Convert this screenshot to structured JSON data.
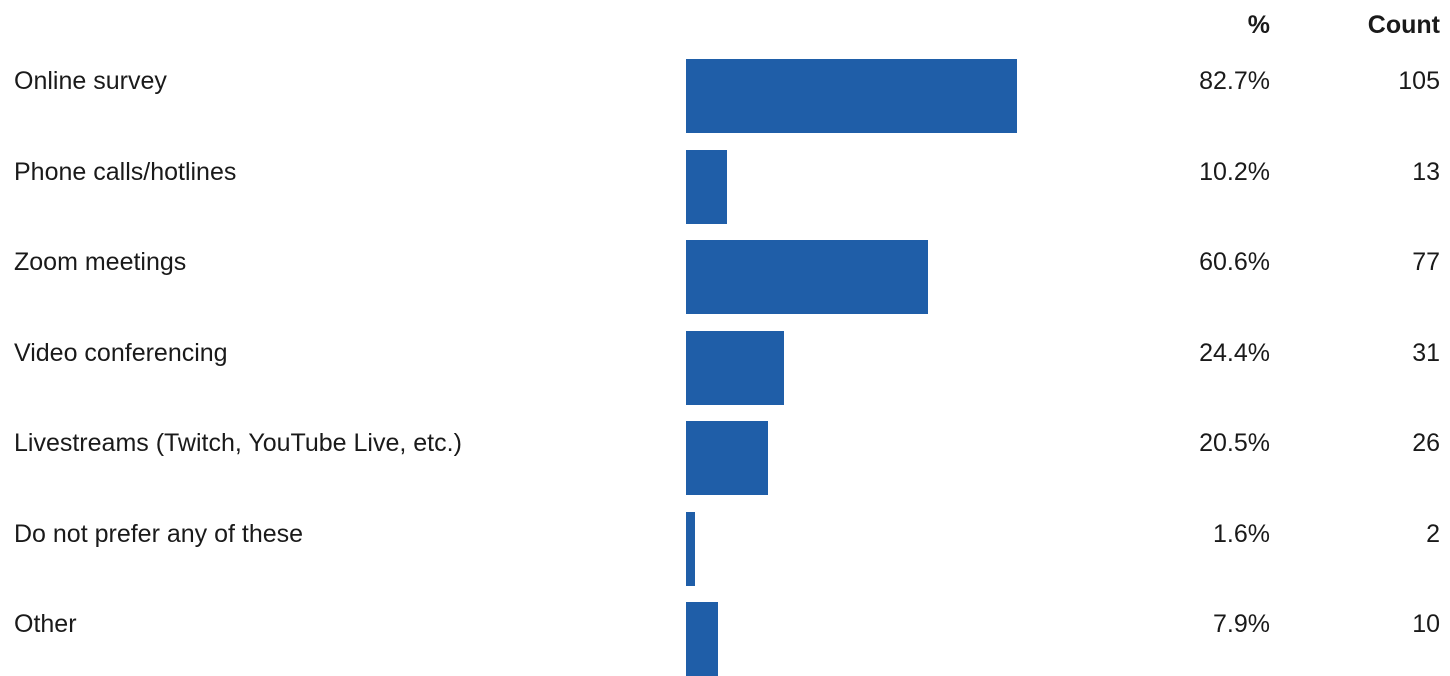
{
  "chart_data": {
    "type": "bar",
    "orientation": "horizontal",
    "columns": {
      "percent_header": "%",
      "count_header": "Count"
    },
    "categories": [
      "Online survey",
      "Phone calls/hotlines",
      "Zoom meetings",
      "Video conferencing",
      "Livestreams (Twitch, YouTube Live, etc.)",
      "Do not prefer any of these",
      "Other"
    ],
    "values": [
      82.7,
      10.2,
      60.6,
      24.4,
      20.5,
      1.6,
      7.9
    ],
    "percent_labels": [
      "82.7%",
      "10.2%",
      "60.6%",
      "24.4%",
      "20.5%",
      "1.6%",
      "7.9%"
    ],
    "counts": [
      "105",
      "13",
      "77",
      "31",
      "26",
      "2",
      "10"
    ],
    "xlim": [
      0,
      100
    ],
    "grid": false,
    "bar_color": "#1f5ea8"
  }
}
